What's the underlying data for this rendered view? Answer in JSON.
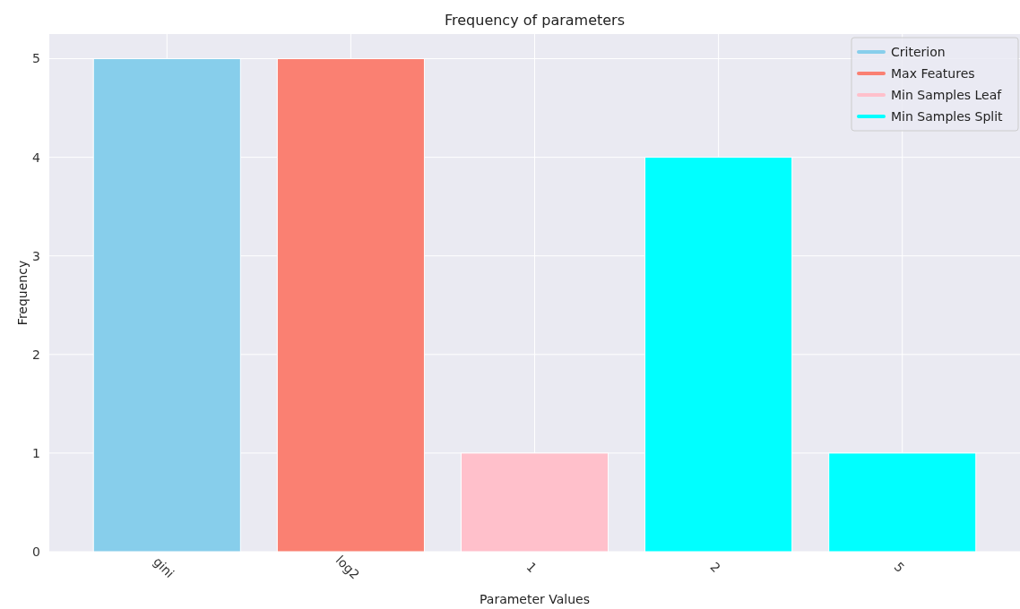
{
  "chart_data": {
    "type": "bar",
    "title": "Frequency of parameters",
    "xlabel": "Parameter Values",
    "ylabel": "Frequency",
    "categories": [
      "gini",
      "log2",
      "1",
      "2",
      "5"
    ],
    "series": [
      {
        "name": "Criterion",
        "color": "#87ceeb",
        "values": [
          5,
          null,
          null,
          null,
          null
        ]
      },
      {
        "name": "Max Features",
        "color": "#fa8072",
        "values": [
          null,
          5,
          null,
          null,
          null
        ]
      },
      {
        "name": "Min Samples Leaf",
        "color": "#ffc0cb",
        "values": [
          null,
          null,
          1,
          null,
          null
        ]
      },
      {
        "name": "Min Samples Split",
        "color": "#00ffff",
        "values": [
          null,
          null,
          null,
          4,
          1
        ]
      }
    ],
    "ylim": [
      0,
      5.25
    ],
    "yticks": [
      0,
      1,
      2,
      3,
      4,
      5
    ],
    "grid": true,
    "legend": "top right"
  }
}
